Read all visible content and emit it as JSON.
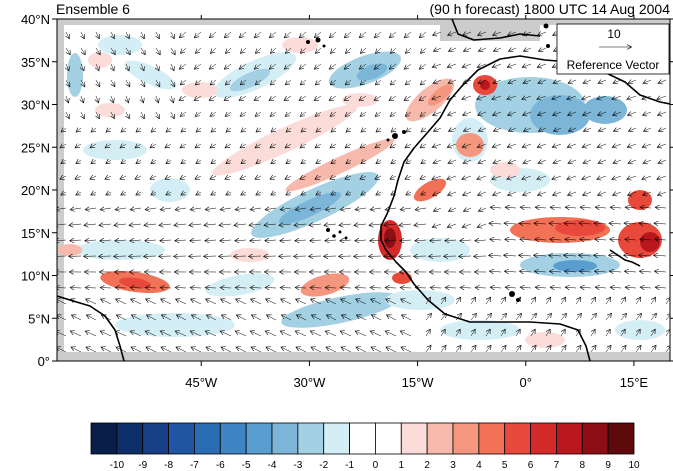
{
  "title_left": "Ensemble 6",
  "title_right": "(90 h forecast) 1800 UTC 14 Aug 2004",
  "reference_vector": {
    "magnitude": "10",
    "label": "Reference Vector"
  },
  "map": {
    "lon_range": [
      -65,
      20
    ],
    "lat_range": [
      0,
      40
    ],
    "lat_ticks": [
      {
        "value": 40,
        "label": "40°N"
      },
      {
        "value": 35,
        "label": "35°N"
      },
      {
        "value": 30,
        "label": "30°N"
      },
      {
        "value": 25,
        "label": "25°N"
      },
      {
        "value": 20,
        "label": "20°N"
      },
      {
        "value": 15,
        "label": "15°N"
      },
      {
        "value": 10,
        "label": "10°N"
      },
      {
        "value": 5,
        "label": "5°N"
      },
      {
        "value": 0,
        "label": "0°"
      }
    ],
    "lon_ticks": [
      {
        "value": -45,
        "label": "45°W"
      },
      {
        "value": -30,
        "label": "30°W"
      },
      {
        "value": -15,
        "label": "15°W"
      },
      {
        "value": 0,
        "label": "0°"
      },
      {
        "value": 15,
        "label": "15°E"
      }
    ],
    "colors": {
      "coast": "#000000",
      "missing": "#c8c8c8",
      "vector": "#000000"
    }
  },
  "colorbar": {
    "labels": [
      "-10",
      "-9",
      "-8",
      "-7",
      "-6",
      "-5",
      "-4",
      "-3",
      "-2",
      "-1",
      "0",
      "1",
      "2",
      "3",
      "4",
      "5",
      "6",
      "7",
      "8",
      "9",
      "10"
    ],
    "colors": [
      "#0a1e4a",
      "#0d2e66",
      "#173f85",
      "#1f56a3",
      "#2b6db5",
      "#3d86c3",
      "#5a9ecf",
      "#7bb6d9",
      "#a3d1e3",
      "#d4eef6",
      "#ffffff",
      "#ffffff",
      "#fbdcd8",
      "#f7b9ab",
      "#f4977e",
      "#f17256",
      "#e9493a",
      "#d42a2a",
      "#b8181d",
      "#8e0e15",
      "#5e0a0d"
    ]
  }
}
